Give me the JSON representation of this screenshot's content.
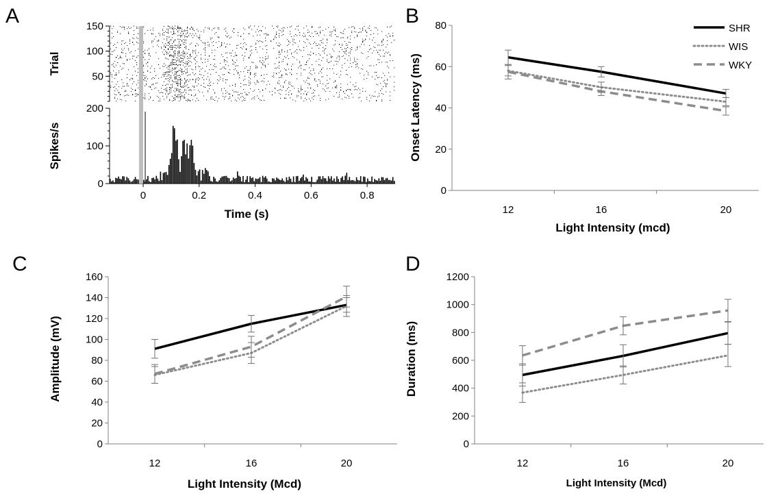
{
  "panels": {
    "A": "A",
    "B": "B",
    "C": "C",
    "D": "D"
  },
  "chart_data": [
    {
      "panel": "A",
      "type": "raster+histogram",
      "stimulus_x": 0,
      "raster": {
        "ylabel": "Trial",
        "ylim": [
          0,
          150
        ],
        "yticks": [
          "50",
          "100",
          "150"
        ],
        "trials": 150,
        "xlim": [
          -0.12,
          0.9
        ]
      },
      "histogram": {
        "ylabel": "Spikes/s",
        "ylim": [
          0,
          200
        ],
        "yticks": [
          "0",
          "100",
          "200"
        ],
        "xlim": [
          -0.12,
          0.9
        ],
        "bin_width": 0.005,
        "baseline_rate": 14,
        "peaks": [
          {
            "center": 0.11,
            "height": 165
          },
          {
            "center": 0.145,
            "height": 120
          },
          {
            "center": 0.17,
            "height": 95
          }
        ],
        "xticks": [
          "0",
          "0.2",
          "0.4",
          "0.6",
          "0.8"
        ],
        "xlabel": "Time (s)"
      }
    },
    {
      "panel": "B",
      "type": "line",
      "x": [
        12,
        16,
        20
      ],
      "xticks": [
        "12",
        "16",
        "20"
      ],
      "xlabel": "Light Intensity (mcd)",
      "ylabel": "Onset Latency (ms)",
      "ylim": [
        0,
        80
      ],
      "yticks": [
        "0",
        "20",
        "40",
        "60",
        "80"
      ],
      "legend": "top-right",
      "series": [
        {
          "name": "SHR",
          "style": "solid",
          "color": "#000000",
          "values": [
            64.5,
            57.5,
            47
          ],
          "err": [
            3.5,
            2.5,
            2
          ]
        },
        {
          "name": "WIS",
          "style": "dotted",
          "color": "#8c8c8c",
          "values": [
            58,
            50,
            43
          ],
          "err": [
            2.5,
            2.5,
            2
          ]
        },
        {
          "name": "WKY",
          "style": "dashed",
          "color": "#8c8c8c",
          "values": [
            57.5,
            48,
            38.5
          ],
          "err": [
            3.5,
            2,
            2
          ]
        }
      ]
    },
    {
      "panel": "C",
      "type": "line",
      "x": [
        12,
        16,
        20
      ],
      "xticks": [
        "12",
        "16",
        "20"
      ],
      "xlabel": "Light Intensity (Mcd)",
      "ylabel": "Amplitude (mV)",
      "ylim": [
        0,
        160
      ],
      "yticks": [
        "0",
        "20",
        "40",
        "60",
        "80",
        "100",
        "120",
        "140",
        "160"
      ],
      "series": [
        {
          "name": "SHR",
          "style": "solid",
          "color": "#000000",
          "values": [
            91,
            115,
            133
          ],
          "err": [
            9,
            8,
            7
          ]
        },
        {
          "name": "WIS",
          "style": "dotted",
          "color": "#8c8c8c",
          "values": [
            66,
            87,
            132
          ],
          "err": [
            8,
            10,
            10
          ]
        },
        {
          "name": "WKY",
          "style": "dashed",
          "color": "#8c8c8c",
          "values": [
            67,
            93,
            141
          ],
          "err": [
            9,
            10,
            10
          ]
        }
      ]
    },
    {
      "panel": "D",
      "type": "line",
      "x": [
        12,
        16,
        20
      ],
      "xticks": [
        "12",
        "16",
        "20"
      ],
      "xlabel": "Light Intensity (Mcd)",
      "ylabel": "Duration (ms)",
      "ylim": [
        0,
        1200
      ],
      "yticks": [
        "0",
        "200",
        "400",
        "600",
        "800",
        "1000",
        "1200"
      ],
      "series": [
        {
          "name": "SHR",
          "style": "solid",
          "color": "#000000",
          "values": [
            495,
            632,
            795
          ],
          "err": [
            80,
            80,
            80
          ]
        },
        {
          "name": "WIS",
          "style": "dotted",
          "color": "#8c8c8c",
          "values": [
            368,
            495,
            635
          ],
          "err": [
            70,
            65,
            80
          ]
        },
        {
          "name": "WKY",
          "style": "dashed",
          "color": "#8c8c8c",
          "values": [
            635,
            848,
            958
          ],
          "err": [
            70,
            65,
            80
          ]
        }
      ]
    }
  ]
}
